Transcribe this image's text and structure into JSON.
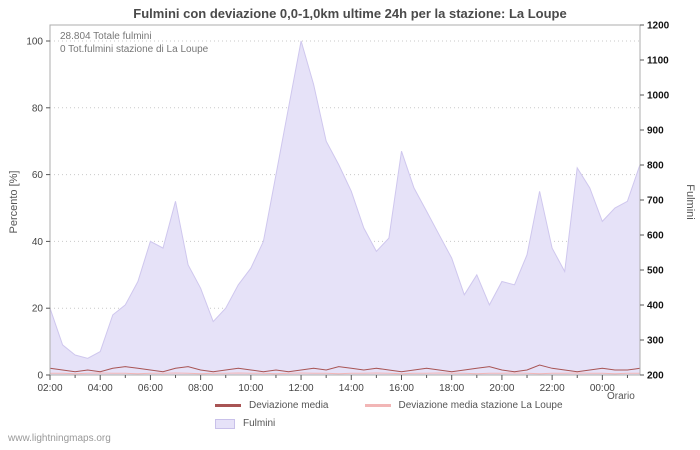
{
  "watermark": "www.lightningmaps.org",
  "chart_data": {
    "type": "area",
    "title": "Fulmini con deviazione 0,0-1,0km ultime 24h per la stazione: La Loupe",
    "annotations": [
      "28.804 Totale fulmini",
      "0 Tot.fulmini stazione di La Loupe"
    ],
    "x_axis": {
      "label": "Orario",
      "start": "02:00",
      "step_minutes": 30,
      "span_hours": 23.5,
      "tick_hours": [
        0,
        2,
        4,
        6,
        8,
        10,
        12,
        14,
        16,
        18,
        20,
        22
      ],
      "tick_labels": [
        "02:00",
        "04:00",
        "06:00",
        "08:00",
        "10:00",
        "12:00",
        "14:00",
        "16:00",
        "18:00",
        "20:00",
        "22:00",
        "00:00"
      ]
    },
    "left_axis": {
      "label": "Percento [%]",
      "min": 0,
      "max": 100,
      "ticks": [
        0,
        20,
        40,
        60,
        80,
        100
      ]
    },
    "right_axis": {
      "label": "Fulmini",
      "min": 200,
      "max": 1200,
      "ticks": [
        200,
        300,
        400,
        500,
        600,
        700,
        800,
        900,
        1000,
        1100,
        1200
      ]
    },
    "grid": "dotted-horizontal",
    "legend_position": "bottom",
    "series": [
      {
        "name": "Fulmini",
        "kind": "area",
        "color": "#e6e2f8",
        "edge_color": "#cfc7ee",
        "values": [
          20,
          9,
          6,
          5,
          7,
          18,
          21,
          28,
          40,
          38,
          52,
          33,
          26,
          16,
          20,
          27,
          32,
          40,
          60,
          80,
          100,
          87,
          70,
          63,
          55,
          44,
          37,
          41,
          67,
          56,
          49,
          42,
          35,
          24,
          30,
          21,
          28,
          27,
          36,
          55,
          38,
          31,
          62,
          56,
          46,
          50,
          52,
          63
        ]
      },
      {
        "name": "Deviazione media stazione La Loupe",
        "kind": "line",
        "color": "#f2b6b6",
        "values": [
          0.5,
          0.5,
          0.4,
          0.5,
          0.6,
          0.5,
          0.5,
          0.4,
          0.5,
          0.5,
          0.6,
          0.5,
          0.4,
          0.5,
          0.5,
          0.6,
          0.5,
          0.5,
          0.4,
          0.5,
          0.6,
          0.5,
          0.5,
          0.4,
          0.5,
          0.5,
          0.6,
          0.5,
          0.4,
          0.5,
          0.5,
          0.6,
          0.5,
          0.5,
          0.4,
          0.5,
          0.5,
          0.6,
          0.5,
          0.4,
          0.5,
          0.5,
          0.6,
          0.5,
          0.5,
          0.4,
          0.5,
          0.5
        ]
      },
      {
        "name": "Deviazione media",
        "kind": "line",
        "color": "#a85454",
        "values": [
          2,
          1.5,
          1,
          1.5,
          1,
          2,
          2.5,
          2,
          1.5,
          1,
          2,
          2.5,
          1.5,
          1,
          1.5,
          2,
          1.5,
          1,
          1.5,
          1,
          1.5,
          2,
          1.5,
          2.5,
          2,
          1.5,
          2,
          1.5,
          1,
          1.5,
          2,
          1.5,
          1,
          1.5,
          2,
          2.5,
          1.5,
          1,
          1.5,
          3,
          2,
          1.5,
          1,
          1.5,
          2,
          1.5,
          1.5,
          2
        ]
      }
    ],
    "legend": [
      {
        "label": "Deviazione media",
        "swatch": "line",
        "color": "#a85454"
      },
      {
        "label": "Deviazione media stazione La Loupe",
        "swatch": "line",
        "color": "#f2b6b6"
      },
      {
        "label": "Fulmini",
        "swatch": "area",
        "color": "#e6e2f8"
      }
    ]
  }
}
